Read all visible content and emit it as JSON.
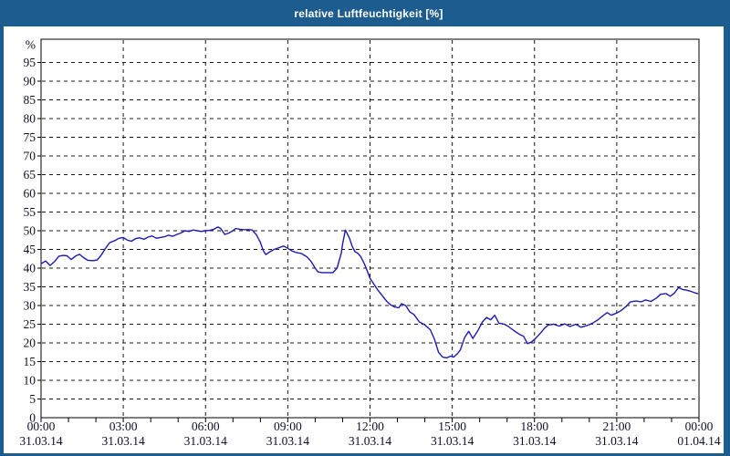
{
  "window": {
    "title": "relative Luftfeuchtigkeit [%]",
    "title_bar_color": "#1d5c8e",
    "border_color": "#1d5c8e"
  },
  "chart_data": {
    "type": "line",
    "title": "relative Luftfeuchtigkeit [%]",
    "ylabel": "%",
    "xlabel": "",
    "ylim": [
      0,
      101
    ],
    "grid": "dashed",
    "legend": "none",
    "line_color": "#1b1bb2",
    "grid_color": "#1a1a1a",
    "y_ticks": [
      0,
      5,
      10,
      15,
      20,
      25,
      30,
      35,
      40,
      45,
      50,
      55,
      60,
      65,
      70,
      75,
      80,
      85,
      90,
      95
    ],
    "x_ticks": [
      {
        "hour": 0,
        "time": "00:00",
        "date": "31.03.14"
      },
      {
        "hour": 3,
        "time": "03:00",
        "date": "31.03.14"
      },
      {
        "hour": 6,
        "time": "06:00",
        "date": "31.03.14"
      },
      {
        "hour": 9,
        "time": "09:00",
        "date": "31.03.14"
      },
      {
        "hour": 12,
        "time": "12:00",
        "date": "31.03.14"
      },
      {
        "hour": 15,
        "time": "15:00",
        "date": "31.03.14"
      },
      {
        "hour": 18,
        "time": "18:00",
        "date": "31.03.14"
      },
      {
        "hour": 21,
        "time": "21:00",
        "date": "31.03.14"
      },
      {
        "hour": 24,
        "time": "00:00",
        "date": "01.04.14"
      }
    ],
    "minor_x_tick_every_hours": 1,
    "series": [
      {
        "name": "relative Luftfeuchtigkeit",
        "unit": "%",
        "points": [
          [
            0,
            41.2
          ],
          [
            0.17,
            41.9
          ],
          [
            0.33,
            40.7
          ],
          [
            0.5,
            41.8
          ],
          [
            0.65,
            43.2
          ],
          [
            0.8,
            43.4
          ],
          [
            0.95,
            43.3
          ],
          [
            1.1,
            42.3
          ],
          [
            1.25,
            43.2
          ],
          [
            1.4,
            43.7
          ],
          [
            1.55,
            42.8
          ],
          [
            1.7,
            42.1
          ],
          [
            1.9,
            42.0
          ],
          [
            2.05,
            42.2
          ],
          [
            2.2,
            43.5
          ],
          [
            2.35,
            45.3
          ],
          [
            2.5,
            46.8
          ],
          [
            2.7,
            47.4
          ],
          [
            2.85,
            48.0
          ],
          [
            3.0,
            48.2
          ],
          [
            3.15,
            47.5
          ],
          [
            3.3,
            47.2
          ],
          [
            3.45,
            47.9
          ],
          [
            3.6,
            48.1
          ],
          [
            3.75,
            47.7
          ],
          [
            3.9,
            48.3
          ],
          [
            4.05,
            48.6
          ],
          [
            4.2,
            48.0
          ],
          [
            4.35,
            48.2
          ],
          [
            4.5,
            48.4
          ],
          [
            4.65,
            48.8
          ],
          [
            4.8,
            48.5
          ],
          [
            4.95,
            49.0
          ],
          [
            5.1,
            49.4
          ],
          [
            5.25,
            50.0
          ],
          [
            5.4,
            49.8
          ],
          [
            5.55,
            50.2
          ],
          [
            5.7,
            50.0
          ],
          [
            5.85,
            49.8
          ],
          [
            6.0,
            50.0
          ],
          [
            6.15,
            50.1
          ],
          [
            6.3,
            50.4
          ],
          [
            6.45,
            51.0
          ],
          [
            6.55,
            50.6
          ],
          [
            6.7,
            49.0
          ],
          [
            6.85,
            49.4
          ],
          [
            7.0,
            50.0
          ],
          [
            7.1,
            50.6
          ],
          [
            7.25,
            50.4
          ],
          [
            7.4,
            50.3
          ],
          [
            7.55,
            50.3
          ],
          [
            7.7,
            50.2
          ],
          [
            7.85,
            49.0
          ],
          [
            8.0,
            46.9
          ],
          [
            8.1,
            44.8
          ],
          [
            8.2,
            43.6
          ],
          [
            8.35,
            44.4
          ],
          [
            8.5,
            45.0
          ],
          [
            8.65,
            45.4
          ],
          [
            8.85,
            45.9
          ],
          [
            9.0,
            45.3
          ],
          [
            9.15,
            44.6
          ],
          [
            9.3,
            44.2
          ],
          [
            9.5,
            43.9
          ],
          [
            9.7,
            43.0
          ],
          [
            9.85,
            41.8
          ],
          [
            10.0,
            40.0
          ],
          [
            10.1,
            39.0
          ],
          [
            10.25,
            38.8
          ],
          [
            10.45,
            38.8
          ],
          [
            10.65,
            38.8
          ],
          [
            10.8,
            40.0
          ],
          [
            10.95,
            44.0
          ],
          [
            11.0,
            46.5
          ],
          [
            11.1,
            50.2
          ],
          [
            11.25,
            48.0
          ],
          [
            11.35,
            45.8
          ],
          [
            11.45,
            44.4
          ],
          [
            11.55,
            44.0
          ],
          [
            11.65,
            43.2
          ],
          [
            11.75,
            41.8
          ],
          [
            11.85,
            40.2
          ],
          [
            12.0,
            37.3
          ],
          [
            12.15,
            35.6
          ],
          [
            12.3,
            34.0
          ],
          [
            12.45,
            32.6
          ],
          [
            12.6,
            31.2
          ],
          [
            12.75,
            30.2
          ],
          [
            12.9,
            29.6
          ],
          [
            13.05,
            29.4
          ],
          [
            13.15,
            30.5
          ],
          [
            13.3,
            30.0
          ],
          [
            13.45,
            28.3
          ],
          [
            13.6,
            27.6
          ],
          [
            13.8,
            25.6
          ],
          [
            14.0,
            24.8
          ],
          [
            14.2,
            23.5
          ],
          [
            14.35,
            21.0
          ],
          [
            14.5,
            17.5
          ],
          [
            14.65,
            16.2
          ],
          [
            14.8,
            16.0
          ],
          [
            14.95,
            16.5
          ],
          [
            15.05,
            16.2
          ],
          [
            15.2,
            17.2
          ],
          [
            15.3,
            18.2
          ],
          [
            15.45,
            21.4
          ],
          [
            15.6,
            23.1
          ],
          [
            15.75,
            21.2
          ],
          [
            15.95,
            23.5
          ],
          [
            16.1,
            25.6
          ],
          [
            16.25,
            26.8
          ],
          [
            16.4,
            26.2
          ],
          [
            16.55,
            27.4
          ],
          [
            16.7,
            25.3
          ],
          [
            16.9,
            25.0
          ],
          [
            17.05,
            24.4
          ],
          [
            17.25,
            23.3
          ],
          [
            17.45,
            22.3
          ],
          [
            17.6,
            21.8
          ],
          [
            17.75,
            19.8
          ],
          [
            17.9,
            20.3
          ],
          [
            18.05,
            21.3
          ],
          [
            18.2,
            22.5
          ],
          [
            18.35,
            23.8
          ],
          [
            18.5,
            24.8
          ],
          [
            18.7,
            25.0
          ],
          [
            18.9,
            24.5
          ],
          [
            19.1,
            25.1
          ],
          [
            19.3,
            24.4
          ],
          [
            19.5,
            25.0
          ],
          [
            19.7,
            24.2
          ],
          [
            19.9,
            24.6
          ],
          [
            20.1,
            25.2
          ],
          [
            20.3,
            26.1
          ],
          [
            20.5,
            27.3
          ],
          [
            20.65,
            28.1
          ],
          [
            20.8,
            27.4
          ],
          [
            21.0,
            28.0
          ],
          [
            21.15,
            28.6
          ],
          [
            21.35,
            29.8
          ],
          [
            21.5,
            31.0
          ],
          [
            21.7,
            31.2
          ],
          [
            21.9,
            31.0
          ],
          [
            22.05,
            31.5
          ],
          [
            22.25,
            31.1
          ],
          [
            22.45,
            32.0
          ],
          [
            22.6,
            33.0
          ],
          [
            22.8,
            33.2
          ],
          [
            22.95,
            32.5
          ],
          [
            23.1,
            33.3
          ],
          [
            23.25,
            34.8
          ],
          [
            23.4,
            34.3
          ],
          [
            23.55,
            34.1
          ],
          [
            23.7,
            33.8
          ],
          [
            23.85,
            33.4
          ],
          [
            23.95,
            33.2
          ]
        ]
      }
    ]
  }
}
